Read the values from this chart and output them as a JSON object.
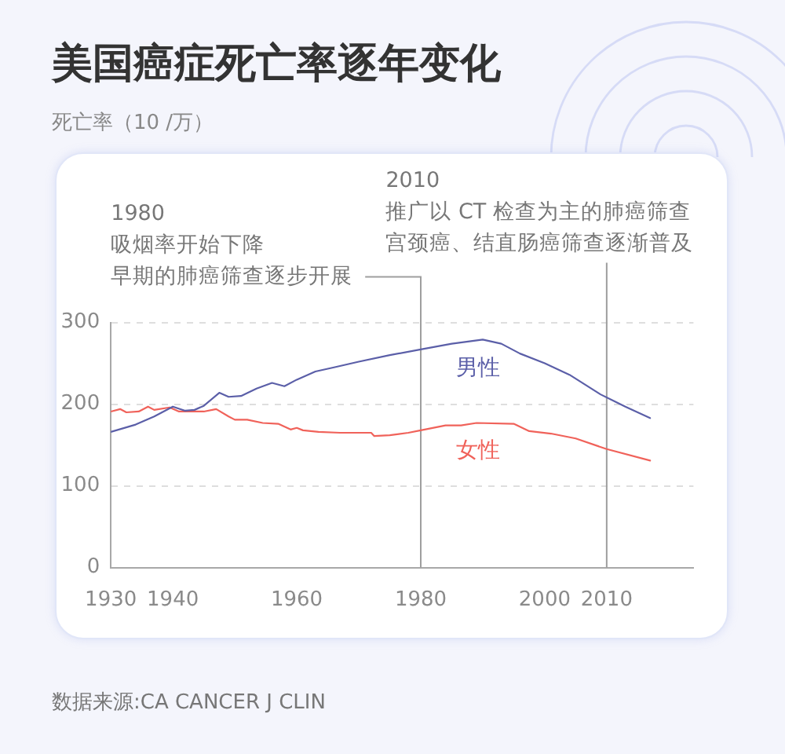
{
  "chart_data": {
    "type": "line",
    "title": "美国癌症死亡率逐年变化",
    "subtitle": "死亡率（10 /万）",
    "annotations": [
      "1980",
      "吸烟率开始下降",
      "早期的肺癌筛查逐步开展",
      "2010",
      "推广以 CT 检查为主的肺癌筛查",
      "宫颈癌、结直肠癌筛查逐渐普及",
      "数据来源:CA CANCER J CLIN"
    ],
    "series": [
      {
        "name": "男性",
        "color": "#5b5fa8",
        "x": [
          1930,
          1934,
          1937,
          1940,
          1942,
          1943.5,
          1945,
          1947.5,
          1949,
          1951,
          1953.5,
          1956,
          1958,
          1960,
          1963,
          1966,
          1970,
          1975,
          1980,
          1985,
          1990,
          1993,
          1996,
          2000,
          2004,
          2009,
          2013,
          2017
        ],
        "values": [
          166,
          175,
          185,
          197,
          192,
          193,
          198,
          214,
          209,
          210,
          219,
          226,
          222,
          230,
          240,
          245,
          252,
          260,
          267,
          274,
          279,
          274,
          262,
          250,
          236,
          212,
          197,
          183
        ]
      },
      {
        "name": "女性",
        "color": "#f0625a",
        "x": [
          1930,
          1931.5,
          1932.5,
          1934.5,
          1936,
          1937,
          1939.5,
          1941,
          1945,
          1947,
          1949,
          1950,
          1952,
          1954.5,
          1957,
          1959,
          1960,
          1961,
          1963.5,
          1967,
          1972,
          1972.5,
          1975,
          1978,
          1980,
          1984,
          1986.5,
          1989,
          1995,
          1997.5,
          2001,
          2005,
          2010,
          2017
        ],
        "values": [
          191,
          194,
          190,
          191,
          197,
          193,
          196,
          191,
          191,
          194,
          185,
          181,
          181,
          177,
          176,
          169,
          171,
          168,
          166,
          165,
          165,
          161,
          162,
          165,
          168,
          174,
          174,
          177,
          176,
          167,
          164,
          158,
          145,
          131
        ]
      }
    ],
    "xlim": [
      1930,
      2024
    ],
    "xticks": [
      1930,
      1940,
      1960,
      1980,
      2000,
      2010
    ],
    "ylim": [
      0,
      300
    ],
    "yticks": [
      0,
      100,
      200,
      300
    ],
    "ref_lines": [
      {
        "axis": "x",
        "value": 1980,
        "color": "#9e9e9e"
      },
      {
        "axis": "x",
        "value": 2010,
        "color": "#9e9e9e"
      }
    ],
    "grid": "y",
    "marker": "none",
    "line_style": "solid"
  }
}
